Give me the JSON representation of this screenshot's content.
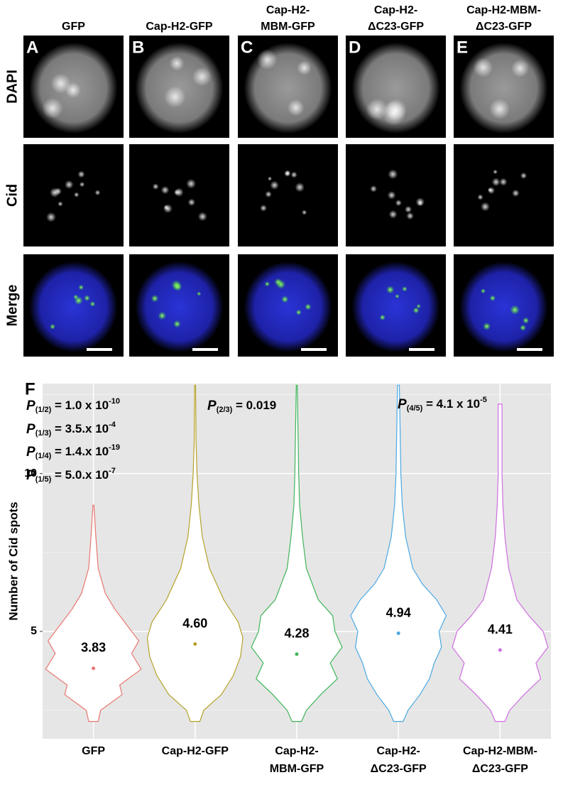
{
  "figure_panels": {
    "columns": [
      {
        "letter": "A",
        "header": [
          "GFP"
        ]
      },
      {
        "letter": "B",
        "header": [
          "Cap-H2-GFP"
        ]
      },
      {
        "letter": "C",
        "header": [
          "Cap-H2-",
          "MBM-GFP"
        ]
      },
      {
        "letter": "D",
        "header": [
          "Cap-H2-",
          "ΔC23-GFP"
        ]
      },
      {
        "letter": "E",
        "header": [
          "Cap-H2-MBM-",
          "ΔC23-GFP"
        ]
      }
    ],
    "rows": [
      "DAPI",
      "Cid",
      "Merge"
    ]
  },
  "chart_data": {
    "type": "violin",
    "panel_letter": "F",
    "ylabel": "Number of Cid spots",
    "ylim": [
      1.6,
      12.85
    ],
    "yticks": [
      5,
      10
    ],
    "minor_gridlines": [
      2.5,
      7.5,
      12.5
    ],
    "grid": true,
    "categories": [
      [
        "GFP"
      ],
      [
        "Cap-H2-GFP"
      ],
      [
        "Cap-H2-",
        "MBM-GFP"
      ],
      [
        "Cap-H2-",
        "ΔC23-GFP"
      ],
      [
        "Cap-H2-MBM-",
        "ΔC23-GFP"
      ]
    ],
    "series": [
      {
        "color": "#e8766f",
        "mean": 3.83,
        "mean_label": "3.83",
        "y": [
          2.15,
          2.5,
          3,
          3.3,
          3.8,
          4.3,
          4.7,
          5.2,
          5.7,
          6.2,
          7,
          8,
          9
        ],
        "density": [
          0.1,
          0.15,
          0.6,
          0.55,
          1.0,
          0.8,
          0.95,
          0.7,
          0.45,
          0.25,
          0.1,
          0.05,
          0.01
        ]
      },
      {
        "color": "#b5a22a",
        "mean": 4.6,
        "mean_label": "4.60",
        "y": [
          2.15,
          2.5,
          3,
          3.6,
          4.2,
          4.8,
          5.3,
          6,
          7,
          8,
          9,
          10,
          11,
          12.8
        ],
        "density": [
          0.1,
          0.18,
          0.55,
          0.8,
          0.95,
          1.0,
          0.9,
          0.6,
          0.3,
          0.15,
          0.08,
          0.04,
          0.02,
          0.01
        ]
      },
      {
        "color": "#3fb55a",
        "mean": 4.28,
        "mean_label": "4.28",
        "y": [
          2.15,
          2.5,
          3,
          3.5,
          4,
          4.5,
          5,
          5.5,
          6,
          7,
          8,
          9,
          10,
          11,
          12.8
        ],
        "density": [
          0.1,
          0.2,
          0.5,
          0.85,
          0.7,
          0.95,
          0.8,
          0.75,
          0.45,
          0.2,
          0.12,
          0.06,
          0.04,
          0.03,
          0.01
        ]
      },
      {
        "color": "#4aa9e3",
        "mean": 4.94,
        "mean_label": "4.94",
        "y": [
          2.15,
          2.5,
          3,
          3.5,
          4,
          4.5,
          5,
          5.5,
          6,
          6.5,
          7,
          8,
          9,
          10,
          12.8
        ],
        "density": [
          0.1,
          0.2,
          0.45,
          0.65,
          0.75,
          0.9,
          0.85,
          1.0,
          0.8,
          0.5,
          0.3,
          0.15,
          0.08,
          0.05,
          0.02
        ]
      },
      {
        "color": "#cf6de0",
        "mean": 4.41,
        "mean_label": "4.41",
        "y": [
          2.15,
          2.5,
          3,
          3.5,
          4,
          4.5,
          5,
          5.5,
          6,
          7,
          8,
          9,
          10,
          12.2
        ],
        "density": [
          0.1,
          0.2,
          0.5,
          0.85,
          0.75,
          1.0,
          0.9,
          0.6,
          0.35,
          0.18,
          0.1,
          0.06,
          0.04,
          0.04
        ]
      }
    ],
    "annotations": [
      {
        "p": "P",
        "sub": "(1/2)",
        "text": " = 1.0 x 10",
        "exp": "-10"
      },
      {
        "p": "P",
        "sub": "(1/3)",
        "text": " = 3.5.x 10",
        "exp": "-4"
      },
      {
        "p": "P",
        "sub": "(1/4)",
        "text": " = 1.4.x 10",
        "exp": "-19"
      },
      {
        "p": "P",
        "sub": "(1/5)",
        "text": " = 5.0.x 10",
        "exp": "-7"
      },
      {
        "p": "P",
        "sub": "(2/3)",
        "text": " = 0.019"
      },
      {
        "p": "P",
        "sub": "(4/5)",
        "text": " = 4.1 x 10",
        "exp": "-5"
      }
    ]
  }
}
